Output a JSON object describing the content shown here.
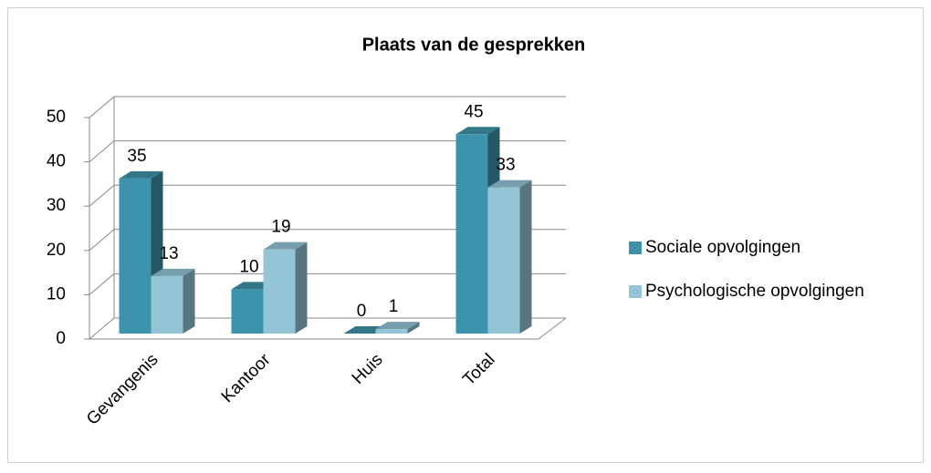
{
  "chart_data": {
    "type": "bar3d",
    "title": "Plaats van de gesprekken",
    "categories": [
      "Gevangenis",
      "Kantoor",
      "Huis",
      "Total"
    ],
    "series": [
      {
        "name": "Sociale opvolgingen",
        "color": "#3d93ab",
        "values": [
          35,
          10,
          0,
          45
        ]
      },
      {
        "name": "Psychologische opvolgingen",
        "color": "#93c5d7",
        "values": [
          13,
          19,
          1,
          33
        ]
      }
    ],
    "ylim": [
      0,
      50
    ],
    "yticks": [
      0,
      10,
      20,
      30,
      40,
      50
    ],
    "grid": true,
    "legend": "right"
  }
}
